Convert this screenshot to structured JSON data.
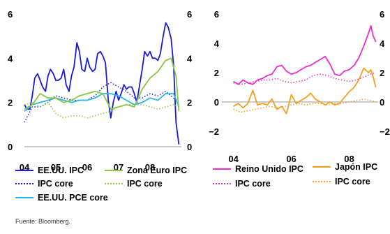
{
  "chart_data": [
    {
      "type": "line",
      "x_ticks": [
        "04",
        "05",
        "06",
        "07",
        "08"
      ],
      "x_range": [
        2004.0,
        2009.0
      ],
      "y_ticks": [
        "0",
        "2",
        "4",
        "6"
      ],
      "y_range": [
        0,
        6
      ],
      "grid": false,
      "series": [
        {
          "name": "EE.UU. IPC",
          "color": "#1a1adc",
          "style": "solid",
          "x": [
            2004.0,
            2004.08,
            2004.17,
            2004.25,
            2004.33,
            2004.42,
            2004.5,
            2004.58,
            2004.67,
            2004.75,
            2004.83,
            2004.92,
            2005.0,
            2005.08,
            2005.17,
            2005.25,
            2005.33,
            2005.42,
            2005.5,
            2005.58,
            2005.67,
            2005.75,
            2005.83,
            2005.92,
            2006.0,
            2006.08,
            2006.17,
            2006.25,
            2006.33,
            2006.42,
            2006.5,
            2006.58,
            2006.67,
            2006.75,
            2006.83,
            2006.92,
            2007.0,
            2007.08,
            2007.17,
            2007.25,
            2007.33,
            2007.42,
            2007.5,
            2007.58,
            2007.67,
            2007.75,
            2007.83,
            2007.92,
            2008.0,
            2008.08,
            2008.17,
            2008.25,
            2008.33,
            2008.42,
            2008.5,
            2008.58,
            2008.67,
            2008.75,
            2008.83,
            2008.92
          ],
          "values": [
            1.9,
            1.7,
            1.7,
            2.3,
            3.1,
            3.3,
            3.0,
            2.7,
            2.5,
            3.2,
            3.5,
            3.3,
            3.0,
            3.0,
            3.1,
            3.5,
            2.8,
            2.5,
            3.2,
            3.6,
            4.7,
            4.3,
            3.5,
            3.4,
            4.0,
            3.6,
            3.4,
            3.5,
            4.2,
            4.3,
            4.1,
            3.8,
            2.1,
            1.3,
            2.0,
            2.5,
            2.1,
            2.4,
            2.8,
            2.6,
            2.7,
            2.7,
            2.4,
            2.0,
            2.8,
            3.5,
            4.3,
            4.1,
            4.3,
            4.0,
            4.0,
            3.9,
            4.2,
            5.0,
            5.6,
            5.4,
            4.9,
            3.7,
            1.1,
            0.1
          ]
        },
        {
          "name": "IPC core",
          "color": "#1a1adc",
          "style": "dotted",
          "x": [
            2004.0,
            2004.25,
            2004.5,
            2004.75,
            2005.0,
            2005.25,
            2005.5,
            2005.75,
            2006.0,
            2006.25,
            2006.5,
            2006.75,
            2007.0,
            2007.25,
            2007.5,
            2007.75,
            2008.0,
            2008.25,
            2008.5,
            2008.75,
            2008.92
          ],
          "values": [
            1.1,
            1.8,
            1.8,
            2.0,
            2.3,
            2.2,
            2.1,
            2.1,
            2.1,
            2.3,
            2.7,
            2.9,
            2.7,
            2.5,
            2.2,
            2.2,
            2.4,
            2.3,
            2.5,
            2.2,
            2.0
          ]
        },
        {
          "name": "EE.UU. PCE core",
          "color": "#2ab8e8",
          "style": "solid",
          "x": [
            2004.0,
            2004.25,
            2004.5,
            2004.75,
            2005.0,
            2005.25,
            2005.5,
            2005.75,
            2006.0,
            2006.25,
            2006.5,
            2006.75,
            2007.0,
            2007.25,
            2007.5,
            2007.75,
            2008.0,
            2008.25,
            2008.5,
            2008.75,
            2008.92
          ],
          "values": [
            1.6,
            1.9,
            2.0,
            2.1,
            2.2,
            2.1,
            2.0,
            2.1,
            2.1,
            2.2,
            2.4,
            2.4,
            2.3,
            2.1,
            1.9,
            2.0,
            2.2,
            2.1,
            2.4,
            2.4,
            1.8
          ]
        },
        {
          "name": "Zona Euro IPC",
          "color": "#8cc63f",
          "style": "solid",
          "x": [
            2004.0,
            2004.25,
            2004.5,
            2004.75,
            2005.0,
            2005.25,
            2005.5,
            2005.75,
            2006.0,
            2006.25,
            2006.5,
            2006.75,
            2007.0,
            2007.25,
            2007.5,
            2007.75,
            2008.0,
            2008.25,
            2008.5,
            2008.67,
            2008.83,
            2008.92
          ],
          "values": [
            1.7,
            1.9,
            2.4,
            2.2,
            2.2,
            2.0,
            2.1,
            2.3,
            2.4,
            2.5,
            2.4,
            1.7,
            1.8,
            1.9,
            1.8,
            2.6,
            3.1,
            3.4,
            3.9,
            4.0,
            3.2,
            1.6
          ]
        },
        {
          "name": "IPC core",
          "color": "#8cc63f",
          "style": "dotted",
          "x": [
            2004.0,
            2004.25,
            2004.5,
            2004.75,
            2005.0,
            2005.25,
            2005.5,
            2005.75,
            2006.0,
            2006.25,
            2006.5,
            2006.75,
            2007.0,
            2007.25,
            2007.5,
            2007.75,
            2008.0,
            2008.25,
            2008.5,
            2008.75,
            2008.92
          ],
          "values": [
            1.9,
            2.0,
            1.8,
            2.0,
            1.5,
            1.3,
            1.4,
            1.4,
            1.3,
            1.4,
            1.5,
            1.6,
            1.8,
            1.9,
            1.9,
            1.9,
            1.8,
            1.7,
            1.8,
            1.9,
            1.8
          ]
        }
      ]
    },
    {
      "type": "line",
      "x_ticks": [
        "04",
        "06",
        "08"
      ],
      "x_range": [
        2003.6,
        2009.0
      ],
      "y_ticks": [
        "−2",
        "0",
        "2",
        "4",
        "6"
      ],
      "y_range": [
        -2,
        6
      ],
      "grid": false,
      "series": [
        {
          "name": "Reino Unido IPC",
          "color": "#ee2ecb",
          "style": "solid",
          "x": [
            2004.0,
            2004.17,
            2004.33,
            2004.5,
            2004.67,
            2004.83,
            2005.0,
            2005.17,
            2005.33,
            2005.5,
            2005.67,
            2005.83,
            2006.0,
            2006.17,
            2006.33,
            2006.5,
            2006.67,
            2006.83,
            2007.0,
            2007.17,
            2007.33,
            2007.5,
            2007.67,
            2007.83,
            2008.0,
            2008.17,
            2008.33,
            2008.5,
            2008.67,
            2008.75,
            2008.83,
            2008.92
          ],
          "values": [
            1.4,
            1.2,
            1.5,
            1.3,
            1.2,
            1.5,
            1.6,
            1.8,
            1.9,
            2.4,
            2.5,
            2.1,
            1.9,
            2.0,
            2.2,
            2.4,
            2.5,
            2.7,
            2.9,
            3.1,
            2.6,
            1.9,
            1.8,
            2.1,
            2.2,
            2.5,
            3.0,
            3.8,
            4.7,
            5.2,
            4.5,
            4.1
          ]
        },
        {
          "name": "IPC core",
          "color": "#ee2ecb",
          "style": "dotted",
          "x": [
            2004.0,
            2004.25,
            2004.5,
            2004.75,
            2005.0,
            2005.25,
            2005.5,
            2005.75,
            2006.0,
            2006.25,
            2006.5,
            2006.75,
            2007.0,
            2007.25,
            2007.5,
            2007.75,
            2008.0,
            2008.25,
            2008.5,
            2008.75,
            2008.92
          ],
          "values": [
            1.3,
            1.2,
            1.3,
            1.4,
            1.5,
            1.5,
            1.6,
            1.4,
            1.3,
            1.4,
            1.5,
            1.8,
            1.9,
            1.8,
            1.6,
            1.5,
            1.4,
            1.5,
            1.7,
            1.9,
            2.0
          ]
        },
        {
          "name": "Japón IPC",
          "color": "#f5a020",
          "style": "solid",
          "x": [
            2004.0,
            2004.17,
            2004.33,
            2004.5,
            2004.67,
            2004.83,
            2005.0,
            2005.17,
            2005.33,
            2005.5,
            2005.67,
            2005.83,
            2006.0,
            2006.17,
            2006.33,
            2006.5,
            2006.67,
            2006.83,
            2007.0,
            2007.17,
            2007.33,
            2007.5,
            2007.67,
            2007.83,
            2008.0,
            2008.17,
            2008.33,
            2008.5,
            2008.67,
            2008.75,
            2008.83,
            2008.92
          ],
          "values": [
            -0.3,
            -0.1,
            -0.4,
            -0.1,
            0.8,
            -0.2,
            -0.1,
            -0.2,
            0.2,
            -0.5,
            -0.3,
            -0.8,
            0.5,
            -0.1,
            0.1,
            0.3,
            0.6,
            0.2,
            0.0,
            -0.2,
            0.0,
            -0.2,
            -0.1,
            0.3,
            0.7,
            1.0,
            1.5,
            2.3,
            2.0,
            2.2,
            1.7,
            1.0
          ]
        },
        {
          "name": "IPC core",
          "color": "#f5a020",
          "style": "dotted",
          "x": [
            2004.0,
            2004.25,
            2004.5,
            2004.75,
            2005.0,
            2005.25,
            2005.5,
            2005.75,
            2006.0,
            2006.25,
            2006.5,
            2006.75,
            2007.0,
            2007.25,
            2007.5,
            2007.75,
            2008.0,
            2008.25,
            2008.5,
            2008.75,
            2008.92
          ],
          "values": [
            -0.5,
            -0.7,
            -0.6,
            -0.5,
            -0.4,
            -0.3,
            -0.4,
            -0.3,
            -0.2,
            -0.1,
            -0.2,
            -0.1,
            -0.1,
            -0.2,
            -0.1,
            -0.1,
            0.0,
            0.1,
            0.2,
            0.1,
            0.0
          ]
        }
      ]
    }
  ],
  "legend_left": [
    {
      "label": "EE.UU. IPC",
      "color": "#1a1adc",
      "style": "solid"
    },
    {
      "label": "Zona Euro IPC",
      "color": "#8cc63f",
      "style": "solid"
    },
    {
      "label": "IPC core",
      "color": "#1a1adc",
      "style": "dotted"
    },
    {
      "label": "IPC core",
      "color": "#8cc63f",
      "style": "dotted"
    },
    {
      "label": "EE.UU. PCE core",
      "color": "#2ab8e8",
      "style": "solid"
    }
  ],
  "legend_right": [
    {
      "label": "Reino Unido IPC",
      "color": "#ee2ecb",
      "style": "solid"
    },
    {
      "label": "Japón IPC",
      "color": "#f5a020",
      "style": "solid"
    },
    {
      "label": "IPC core",
      "color": "#ee2ecb",
      "style": "dotted"
    },
    {
      "label": "IPC core",
      "color": "#f5a020",
      "style": "dotted"
    }
  ],
  "source": "Fuente: Bloomberg."
}
